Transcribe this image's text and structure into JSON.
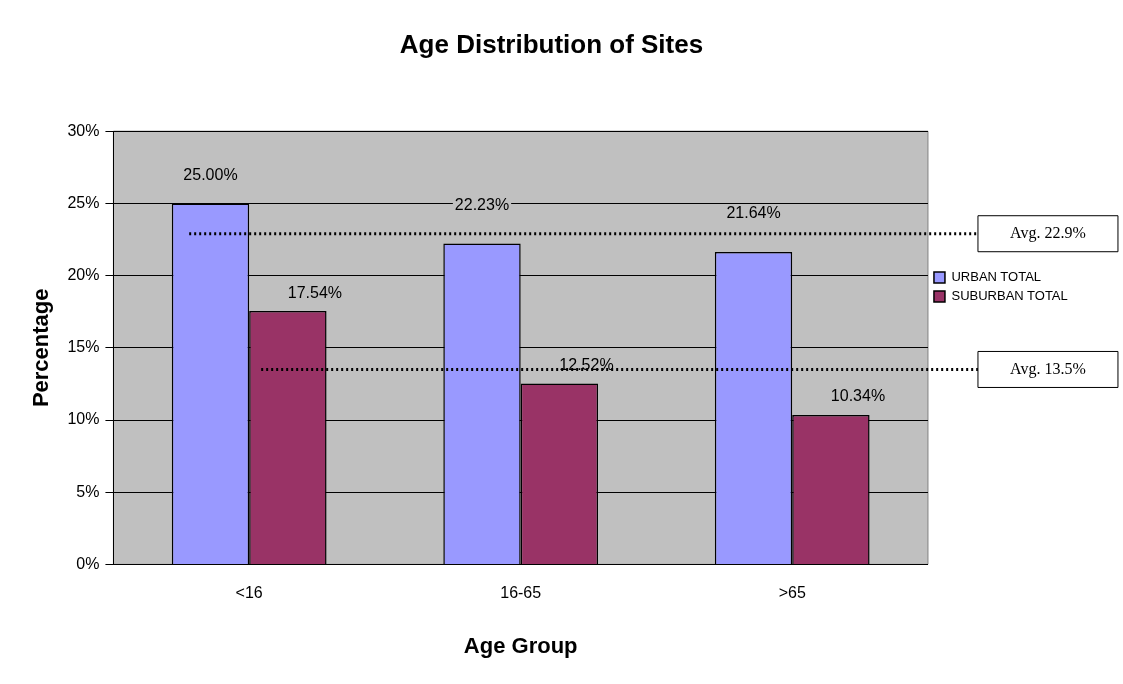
{
  "chart_data": {
    "type": "bar",
    "title": "Age Distribution of Sites",
    "xlabel": "Age Group",
    "ylabel": "Percentage",
    "categories": [
      "<16",
      "16-65",
      ">65"
    ],
    "series": [
      {
        "name": "URBAN TOTAL",
        "color": "#9999ff",
        "values": [
          25.0,
          22.23,
          21.64
        ],
        "value_labels": [
          "25.00%",
          "22.23%",
          "21.64%"
        ]
      },
      {
        "name": "SUBURBAN TOTAL",
        "color": "#993366",
        "values": [
          17.54,
          12.52,
          10.34
        ],
        "value_labels": [
          "17.54%",
          "12.52%",
          "10.34%"
        ]
      }
    ],
    "ylim": [
      0,
      30
    ],
    "yticks": [
      {
        "value": 0,
        "label": "0%"
      },
      {
        "value": 5,
        "label": "5%"
      },
      {
        "value": 10,
        "label": "10%"
      },
      {
        "value": 15,
        "label": "15%"
      },
      {
        "value": 20,
        "label": "20%"
      },
      {
        "value": 25,
        "label": "25%"
      },
      {
        "value": 30,
        "label": "30%"
      }
    ],
    "ref_lines": [
      {
        "axis": "y",
        "value": 22.9,
        "label": "Avg. 22.9%",
        "line_style": "dotted",
        "color": "#000000"
      },
      {
        "axis": "y",
        "value": 13.5,
        "label": "Avg. 13.5%",
        "line_style": "dotted",
        "color": "#000000"
      }
    ],
    "grid": "y",
    "legend": "right"
  }
}
